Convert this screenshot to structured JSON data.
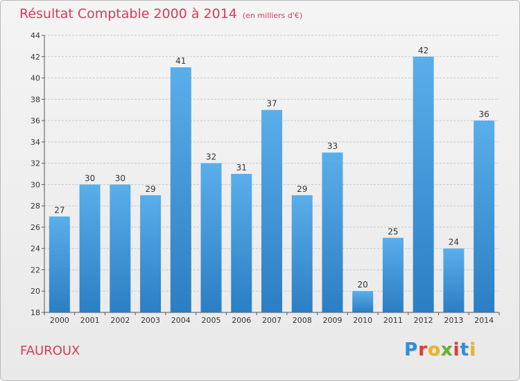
{
  "header": {
    "title": "Résultat Comptable 2000 à 2014",
    "subtitle": "(en milliers d'€)"
  },
  "footer": {
    "town": "FAUROUX",
    "logo_letters": [
      "P",
      "r",
      "o",
      "x",
      "i",
      "t",
      "i"
    ],
    "logo_colors": [
      "#2e8fd8",
      "#e23b33",
      "#f0b31a",
      "#62b32f",
      "#e23b33",
      "#2e8fd8",
      "#f0b31a"
    ]
  },
  "chart_data": {
    "type": "bar",
    "title": "Résultat Comptable 2000 à 2014",
    "subtitle": "(en milliers d'€)",
    "categories": [
      "2000",
      "2001",
      "2002",
      "2003",
      "2004",
      "2005",
      "2006",
      "2007",
      "2008",
      "2009",
      "2010",
      "2011",
      "2012",
      "2013",
      "2014"
    ],
    "values": [
      27,
      30,
      30,
      29,
      41,
      32,
      31,
      37,
      29,
      33,
      20,
      25,
      42,
      24,
      36
    ],
    "ylim": [
      18,
      44
    ],
    "yticks": [
      18,
      20,
      22,
      24,
      26,
      28,
      30,
      32,
      34,
      36,
      38,
      40,
      42,
      44
    ],
    "grid": true,
    "bar_color": "#3e95d8"
  }
}
